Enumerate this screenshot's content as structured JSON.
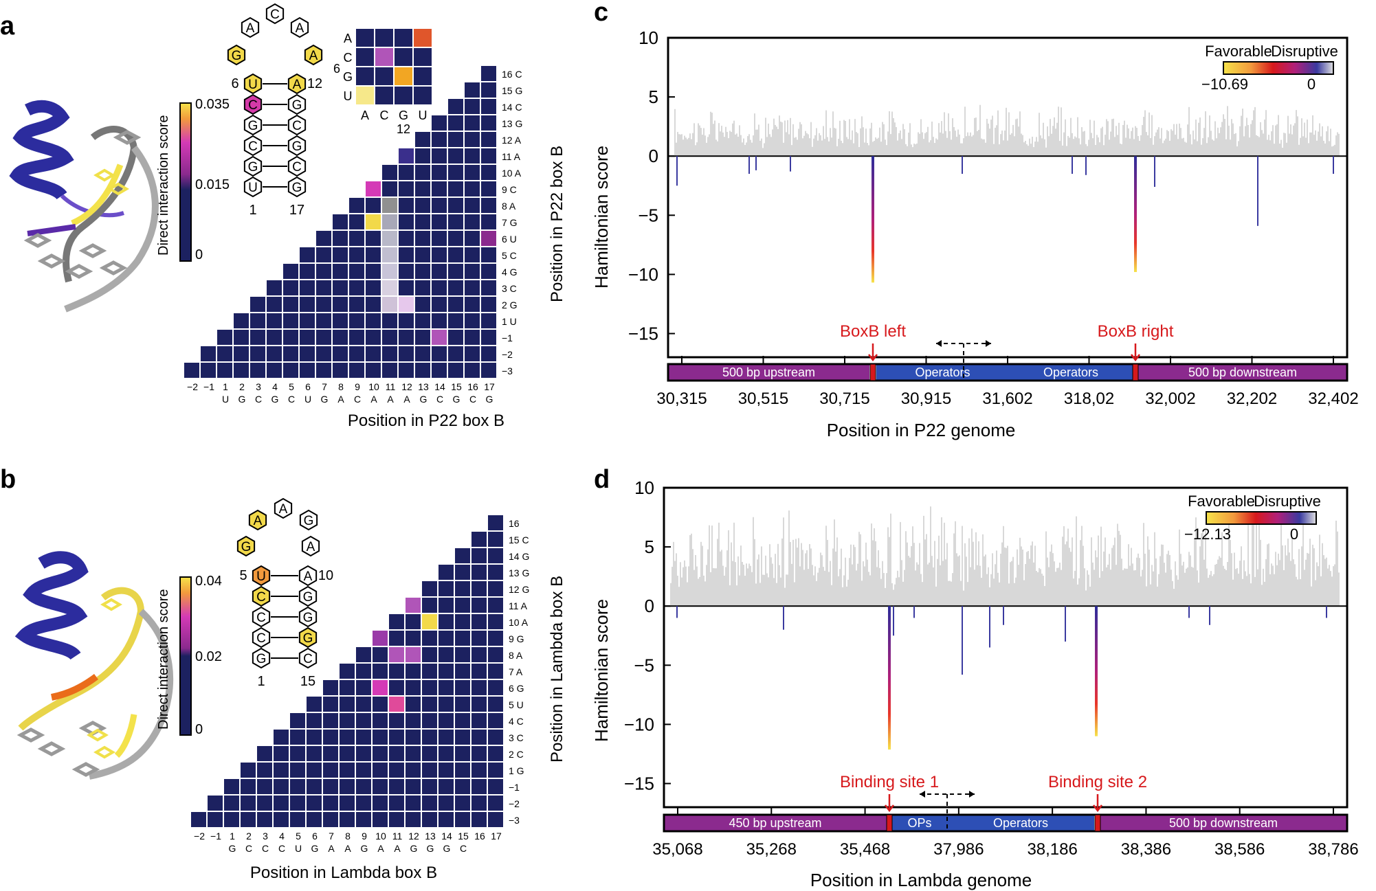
{
  "panels": {
    "a": {
      "letter": "a",
      "colorbar": {
        "title": "Direct interaction score",
        "ticks": [
          "0.035",
          "0.015",
          "0"
        ],
        "max": 0.035,
        "min": 0
      },
      "axis_x_title": "Position in P22 box B",
      "axis_y_title": "Position in P22 box B",
      "x_numbers": [
        "−2",
        "−1",
        "1",
        "2",
        "3",
        "4",
        "5",
        "6",
        "7",
        "8",
        "9",
        "10",
        "11",
        "12",
        "13",
        "14",
        "15",
        "16",
        "17"
      ],
      "x_bases": [
        "",
        "",
        "U",
        "G",
        "C",
        "G",
        "C",
        "U",
        "G",
        "A",
        "C",
        "A",
        "A",
        "A",
        "G",
        "C",
        "G",
        "C",
        "G"
      ],
      "y_labels": [
        "16 C",
        "15 G",
        "14 C",
        "13 G",
        "12 A",
        "11 A",
        "10 A",
        "9 C",
        "8 A",
        "7 G",
        "6 U",
        "5 C",
        "4 G",
        "3 C",
        "2 G",
        "1 U",
        "−1",
        "−2",
        "−3"
      ],
      "inset": {
        "rows": [
          "A",
          "C",
          "G",
          "U"
        ],
        "cols": [
          "A",
          "C",
          "G",
          "U"
        ],
        "row_number": "6",
        "col_number": "12"
      },
      "stemloop": {
        "loop": [
          "G",
          "A",
          "C",
          "A",
          "A"
        ],
        "pair_left": [
          "U",
          "C",
          "G",
          "C",
          "G",
          "U"
        ],
        "pair_right": [
          "A",
          "G",
          "C",
          "G",
          "C",
          "G"
        ],
        "num_left_top": "6",
        "num_right_top": "12",
        "num_bottom_left": "1",
        "num_bottom_right": "17"
      }
    },
    "b": {
      "letter": "b",
      "colorbar": {
        "title": "Direct interaction score",
        "ticks": [
          "0.04",
          "0.02",
          "0"
        ],
        "max": 0.04,
        "min": 0
      },
      "axis_x_title": "Position in Lambda box B",
      "axis_y_title": "Position in Lambda box B",
      "x_numbers": [
        "−2",
        "−1",
        "1",
        "2",
        "3",
        "4",
        "5",
        "6",
        "7",
        "8",
        "9",
        "10",
        "11",
        "12",
        "13",
        "14",
        "15",
        "16",
        "17"
      ],
      "x_bases": [
        "",
        "",
        "G",
        "C",
        "C",
        "C",
        "U",
        "G",
        "A",
        "A",
        "G",
        "A",
        "A",
        "G",
        "G",
        "G",
        "C",
        "",
        ""
      ],
      "y_labels": [
        "16",
        "15 C",
        "14 G",
        "13 G",
        "12 G",
        "11 A",
        "10 A",
        "9 G",
        "8 A",
        "7 A",
        "6 G",
        "5 U",
        "4 C",
        "3 C",
        "2 C",
        "1 G",
        "−1",
        "−2",
        "−3"
      ],
      "stemloop": {
        "loop": [
          "G",
          "A",
          "A",
          "G",
          "A"
        ],
        "pair_left": [
          "U",
          "C",
          "C",
          "C",
          "G"
        ],
        "pair_right": [
          "A",
          "G",
          "G",
          "G",
          "C"
        ],
        "num_left_top": "5",
        "num_right_top": "10",
        "num_bottom_left": "1",
        "num_bottom_right": "15"
      }
    },
    "c": {
      "letter": "c",
      "y_title": "Hamiltonian score",
      "x_title": "Position in P22 genome",
      "y_ticks": [
        "10",
        "5",
        "0",
        "−5",
        "−10",
        "−15"
      ],
      "x_ticks": [
        "30,315",
        "30,515",
        "30,715",
        "30,915",
        "31,602",
        "318,02",
        "32,002",
        "32,202",
        "32,402"
      ],
      "legend": {
        "favorable": "Favorable",
        "disruptive": "Disruptive",
        "min": "−10.69",
        "max": "0"
      },
      "markers": [
        "BoxB left",
        "BoxB right"
      ],
      "bar_segments": [
        "500 bp upstream",
        "Operators",
        "Operators",
        "500 bp downstream"
      ]
    },
    "d": {
      "letter": "d",
      "y_title": "Hamiltonian score",
      "x_title": "Position in Lambda genome",
      "y_ticks": [
        "10",
        "5",
        "0",
        "−5",
        "−10",
        "−15"
      ],
      "x_ticks": [
        "35,068",
        "35,268",
        "35,468",
        "37,986",
        "38,186",
        "38,386",
        "38,586",
        "38,786"
      ],
      "legend": {
        "favorable": "Favorable",
        "disruptive": "Disruptive",
        "min": "−12.13",
        "max": "0"
      },
      "markers": [
        "Binding site 1",
        "Binding site 2"
      ],
      "bar_segments": [
        "450 bp upstream",
        "OPs",
        "Operators",
        "500 bp downstream"
      ]
    }
  },
  "colors": {
    "navy": "#1c2160",
    "purple": "#8b2a8e",
    "blue": "#2d4fb5",
    "red": "#d7191c",
    "yellow": "#f6e34a",
    "orange": "#f29a3d",
    "magenta": "#d43ab6",
    "gray": "#d8d8d8"
  }
}
